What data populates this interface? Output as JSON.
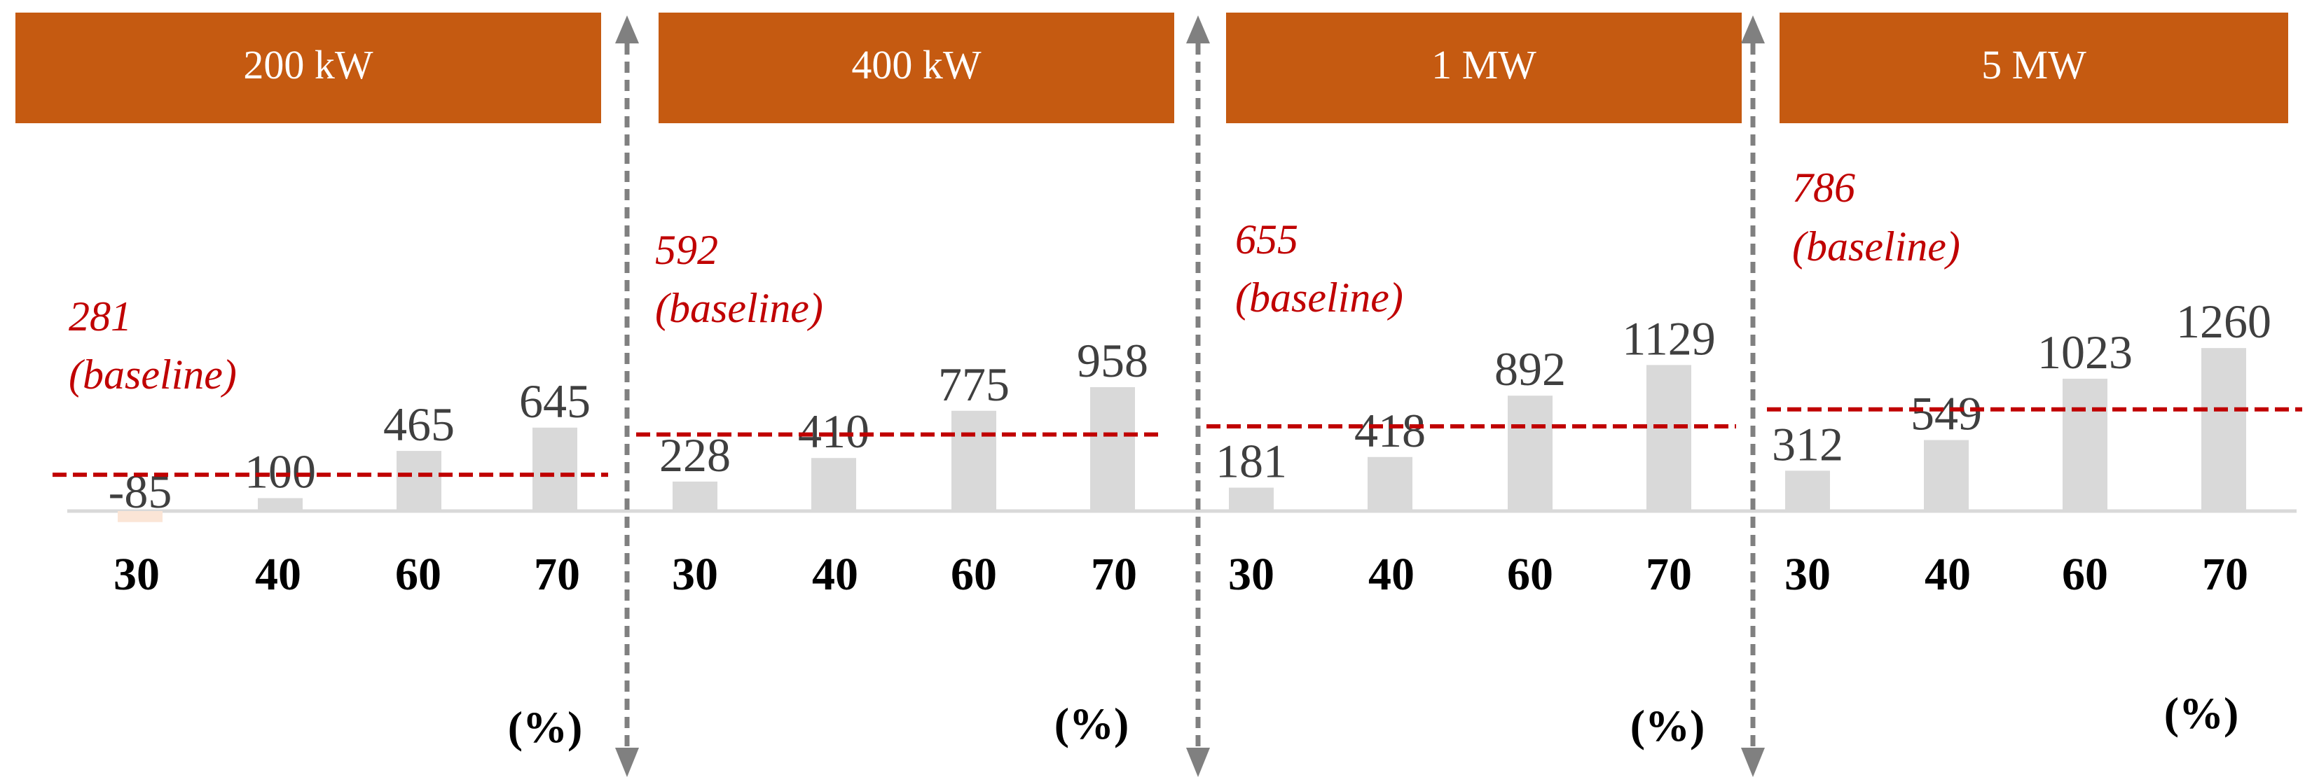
{
  "colors": {
    "header": "#c55a11",
    "bar": "#d9d9d9",
    "negative_bar": "#fbe5d6",
    "baseline": "#c00000",
    "separator": "#808080"
  },
  "chart_data": [
    {
      "type": "bar",
      "title": "200 kW",
      "categories": [
        "30",
        "40",
        "60",
        "70"
      ],
      "values": [
        -85,
        100,
        465,
        645
      ],
      "value_labels": [
        "-85",
        "100",
        "465",
        "645"
      ],
      "baseline": {
        "value": 281,
        "value_label": "281",
        "label": "(baseline)"
      },
      "unit": "(%)"
    },
    {
      "type": "bar",
      "title": "400 kW",
      "categories": [
        "30",
        "40",
        "60",
        "70"
      ],
      "values": [
        228,
        410,
        775,
        958
      ],
      "value_labels": [
        "228",
        "410",
        "775",
        "958"
      ],
      "baseline": {
        "value": 592,
        "value_label": "592",
        "label": "(baseline)"
      },
      "unit": "(%)"
    },
    {
      "type": "bar",
      "title": "1 MW",
      "categories": [
        "30",
        "40",
        "60",
        "70"
      ],
      "values": [
        181,
        418,
        892,
        1129
      ],
      "value_labels": [
        "181",
        "418",
        "892",
        "1129"
      ],
      "baseline": {
        "value": 655,
        "value_label": "655",
        "label": "(baseline)"
      },
      "unit": "(%)"
    },
    {
      "type": "bar",
      "title": "5 MW",
      "categories": [
        "30",
        "40",
        "60",
        "70"
      ],
      "values": [
        312,
        549,
        1023,
        1260
      ],
      "value_labels": [
        "312",
        "549",
        "1023",
        "1260"
      ],
      "baseline": {
        "value": 786,
        "value_label": "786",
        "label": "(baseline)"
      },
      "unit": "(%)"
    }
  ]
}
